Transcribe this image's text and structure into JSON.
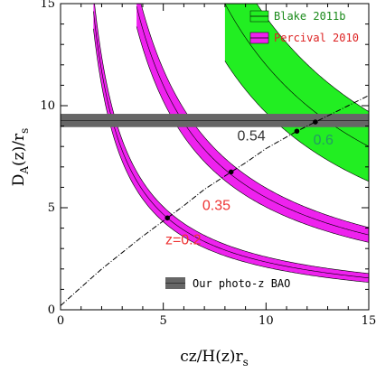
{
  "chart_data": {
    "type": "line",
    "xlabel": "cz/H(z)r",
    "xlabel_sub": "s",
    "ylabel_main": "D",
    "ylabel_sub_a": "A",
    "ylabel_rest": "(z)/r",
    "ylabel_sub_s": "s",
    "xlim": [
      0,
      15
    ],
    "ylim": [
      0,
      15
    ],
    "xticks": [
      0,
      5,
      10,
      15
    ],
    "yticks": [
      0,
      5,
      10,
      15
    ],
    "colors": {
      "blake": "#22ee22",
      "percival": "#ee22ee",
      "photoz": "#666666",
      "curve": "#000000",
      "label_red": "#ee3333",
      "label_green": "#229966",
      "label_dark": "#333333"
    },
    "photoz_band": {
      "label": "Our photo-z BAO",
      "y_low": 8.95,
      "y_high": 9.6,
      "y_center": 9.27
    },
    "legend": [
      {
        "key": "blake",
        "label": "Blake 2011b"
      },
      {
        "key": "percival",
        "label": "Percival 2010"
      }
    ],
    "constraint_curves": [
      {
        "z": 0.2,
        "dataset": "percival",
        "A": 23.4,
        "halfwidth": 0.14,
        "x_start": 1.6,
        "x_end": 15
      },
      {
        "z": 0.35,
        "dataset": "percival",
        "A": 55.0,
        "halfwidth": 0.16,
        "x_start": 3.7,
        "x_end": 15
      },
      {
        "z": 0.6,
        "dataset": "blake",
        "A": 120.0,
        "halfwidth": 0.45,
        "x_start": 8.0,
        "x_end": 15
      }
    ],
    "distance_curve": {
      "x": [
        0,
        1,
        2,
        3,
        4,
        5.2,
        6,
        7,
        8.3,
        9,
        10,
        11.5,
        12.4,
        13,
        14,
        15
      ],
      "y": [
        0.2,
        1.1,
        2.0,
        2.8,
        3.6,
        4.5,
        5.1,
        5.9,
        6.75,
        7.2,
        7.9,
        8.75,
        9.2,
        9.5,
        10.0,
        10.5
      ]
    },
    "points": [
      {
        "x": 5.2,
        "y": 4.5,
        "z": 0.2
      },
      {
        "x": 8.3,
        "y": 6.75,
        "z": 0.35
      },
      {
        "x": 11.5,
        "y": 8.75,
        "z": 0.54
      },
      {
        "x": 12.4,
        "y": 9.2,
        "z": 0.6
      }
    ],
    "annotations": [
      {
        "text": "z=0.2",
        "x": 5.1,
        "y": 3.2,
        "color": "label_red"
      },
      {
        "text": "0.35",
        "x": 6.9,
        "y": 4.9,
        "color": "label_red"
      },
      {
        "text": "0.54",
        "x": 8.6,
        "y": 8.3,
        "color": "label_dark"
      },
      {
        "text": "0.6",
        "x": 12.3,
        "y": 8.1,
        "color": "label_green"
      }
    ]
  }
}
